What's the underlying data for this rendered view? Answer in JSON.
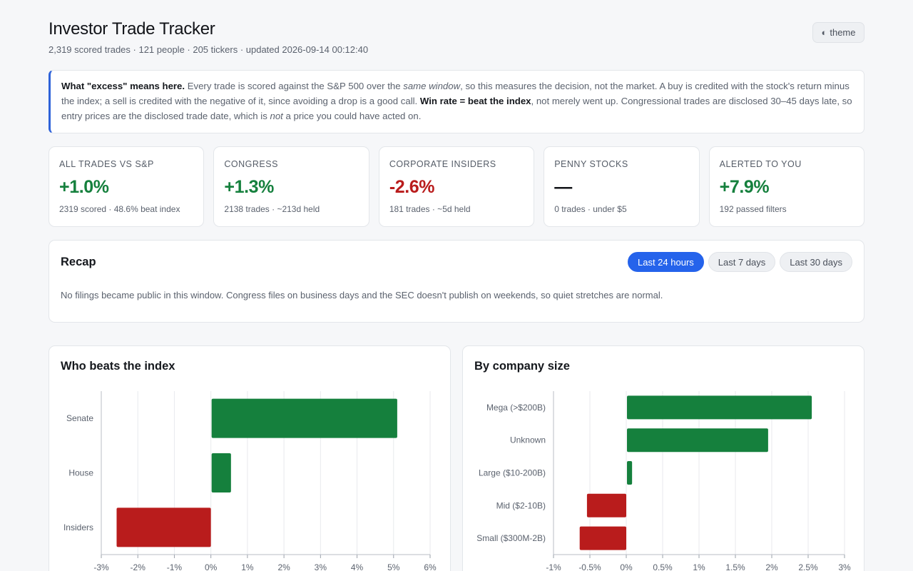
{
  "header": {
    "title": "Investor Trade Tracker",
    "subtitle": "2,319 scored trades · 121 people · 205 tickers · updated 2026-09-14 00:12:40",
    "theme_label": "theme",
    "theme_icon": "half-circle-icon"
  },
  "note": {
    "lead": "What \"excess\" means here.",
    "t1": " Every trade is scored against the S&P 500 over the ",
    "em1": "same window",
    "t2": ", so this measures the decision, not the market. A buy is credited with the stock's return minus the index; a sell is credited with the negative of it, since avoiding a drop is a good call. ",
    "bold2": "Win rate = beat the index",
    "t3": ", not merely went up. Congressional trades are disclosed 30–45 days late, so entry prices are the disclosed trade date, which is ",
    "em2": "not",
    "t4": " a price you could have acted on."
  },
  "cards": [
    {
      "label": "All trades vs S&P",
      "value": "+1.0%",
      "sub": "2319 scored · 48.6% beat index",
      "tone": "pos"
    },
    {
      "label": "Congress",
      "value": "+1.3%",
      "sub": "2138 trades · ~213d held",
      "tone": "pos"
    },
    {
      "label": "Corporate insiders",
      "value": "-2.6%",
      "sub": "181 trades · ~5d held",
      "tone": "neg"
    },
    {
      "label": "Penny stocks",
      "value": "—",
      "sub": "0 trades · under $5",
      "tone": "neu"
    },
    {
      "label": "Alerted to you",
      "value": "+7.9%",
      "sub": "192 passed filters",
      "tone": "pos"
    }
  ],
  "recap": {
    "title": "Recap",
    "tabs": [
      "Last 24 hours",
      "Last 7 days",
      "Last 30 days"
    ],
    "active_tab": 0,
    "message": "No filings became public in this window. Congress files on business days and the SEC doesn't publish on weekends, so quiet stretches are normal."
  },
  "colors": {
    "positive": "#15803d",
    "negative": "#b91c1c",
    "accent": "#2563eb"
  },
  "chart_data": [
    {
      "type": "bar",
      "orientation": "horizontal",
      "title": "Who beats the index",
      "categories": [
        "Senate",
        "House",
        "Insiders"
      ],
      "values": [
        5.1,
        0.55,
        -2.6
      ],
      "xlim": [
        -3,
        6
      ],
      "ticks": [
        -3,
        -2,
        -1,
        0,
        1,
        2,
        3,
        4,
        5,
        6
      ],
      "tick_labels": [
        "-3%",
        "-2%",
        "-1%",
        "0%",
        "1%",
        "2%",
        "3%",
        "4%",
        "5%",
        "6%"
      ],
      "grid": true
    },
    {
      "type": "bar",
      "orientation": "horizontal",
      "title": "By company size",
      "categories": [
        "Mega (>$200B)",
        "Unknown",
        "Large ($10-200B)",
        "Mid ($2-10B)",
        "Small ($300M-2B)"
      ],
      "values": [
        2.55,
        1.95,
        0.08,
        -0.55,
        -0.65
      ],
      "xlim": [
        -1,
        3
      ],
      "ticks": [
        -1,
        -0.5,
        0,
        0.5,
        1,
        1.5,
        2,
        2.5,
        3
      ],
      "tick_labels": [
        "-1%",
        "-0.5%",
        "0%",
        "0.5%",
        "1%",
        "1.5%",
        "2%",
        "2.5%",
        "3%"
      ],
      "grid": true
    }
  ]
}
